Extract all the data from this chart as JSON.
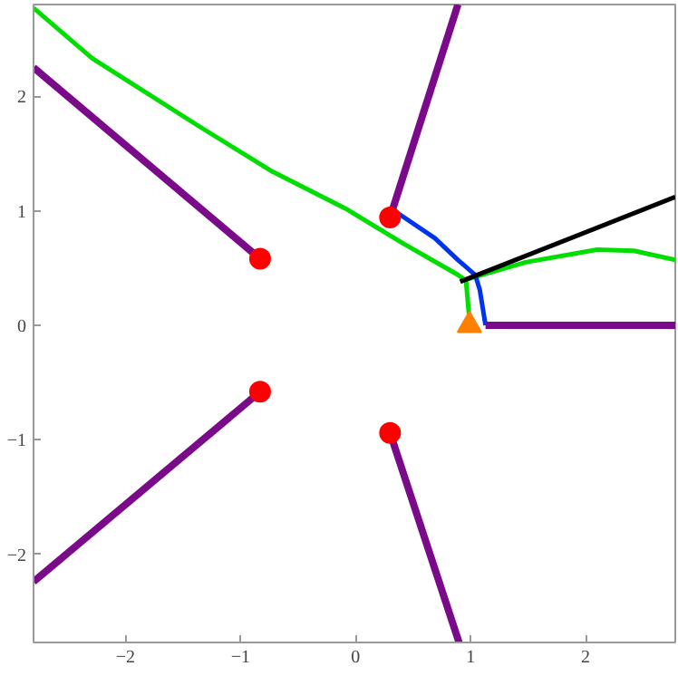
{
  "chart_data": {
    "type": "line",
    "xlim": [
      -2.8,
      2.78
    ],
    "ylim": [
      -2.77,
      2.8
    ],
    "xticks": [
      -2,
      -1,
      0,
      1,
      2
    ],
    "yticks": [
      -2,
      -1,
      0,
      1,
      2
    ],
    "grid": false,
    "line_style": "solid",
    "series": [
      {
        "color": "#00dd00",
        "x": [
          -2.8,
          -2.29,
          -1.35,
          -0.72,
          -0.09,
          0.42,
          0.89,
          0.96,
          0.99
        ],
        "values": [
          2.77,
          2.33,
          1.73,
          1.34,
          1.02,
          0.71,
          0.44,
          0.39,
          0.05
        ]
      },
      {
        "color": "#00dd00",
        "x": [
          0.93,
          1.48,
          2.1,
          2.42,
          2.78
        ],
        "values": [
          0.39,
          0.55,
          0.66,
          0.65,
          0.57
        ]
      },
      {
        "color": "#0033ee",
        "x": [
          0.35,
          0.69,
          0.89,
          1.04,
          1.08,
          1.13
        ],
        "values": [
          0.99,
          0.76,
          0.57,
          0.44,
          0.31,
          0.0
        ]
      },
      {
        "color": "#000000",
        "x": [
          0.91,
          2.78
        ],
        "values": [
          0.38,
          1.12
        ]
      },
      {
        "color": "#7a0a8a",
        "x": [
          -2.8,
          -0.83
        ],
        "values": [
          2.25,
          0.58
        ]
      },
      {
        "color": "#7a0a8a",
        "x": [
          -2.8,
          -0.83
        ],
        "values": [
          -2.24,
          -0.58
        ]
      },
      {
        "color": "#7a0a8a",
        "x": [
          0.3,
          0.89
        ],
        "values": [
          0.94,
          2.8
        ]
      },
      {
        "color": "#7a0a8a",
        "x": [
          0.3,
          0.9
        ],
        "values": [
          -0.94,
          -2.77
        ]
      },
      {
        "color": "#7a0a8a",
        "x": [
          1.13,
          2.78
        ],
        "values": [
          0.0,
          0.0
        ]
      },
      {
        "type": "scatter",
        "marker": "circle",
        "color": "#ff0000",
        "x": [
          -0.83,
          -0.83,
          0.3,
          0.3
        ],
        "values": [
          0.58,
          -0.58,
          0.94,
          -0.94
        ]
      },
      {
        "type": "scatter",
        "marker": "triangle",
        "color": "#ff8000",
        "x": [
          0.99
        ],
        "values": [
          0.0
        ]
      }
    ]
  }
}
